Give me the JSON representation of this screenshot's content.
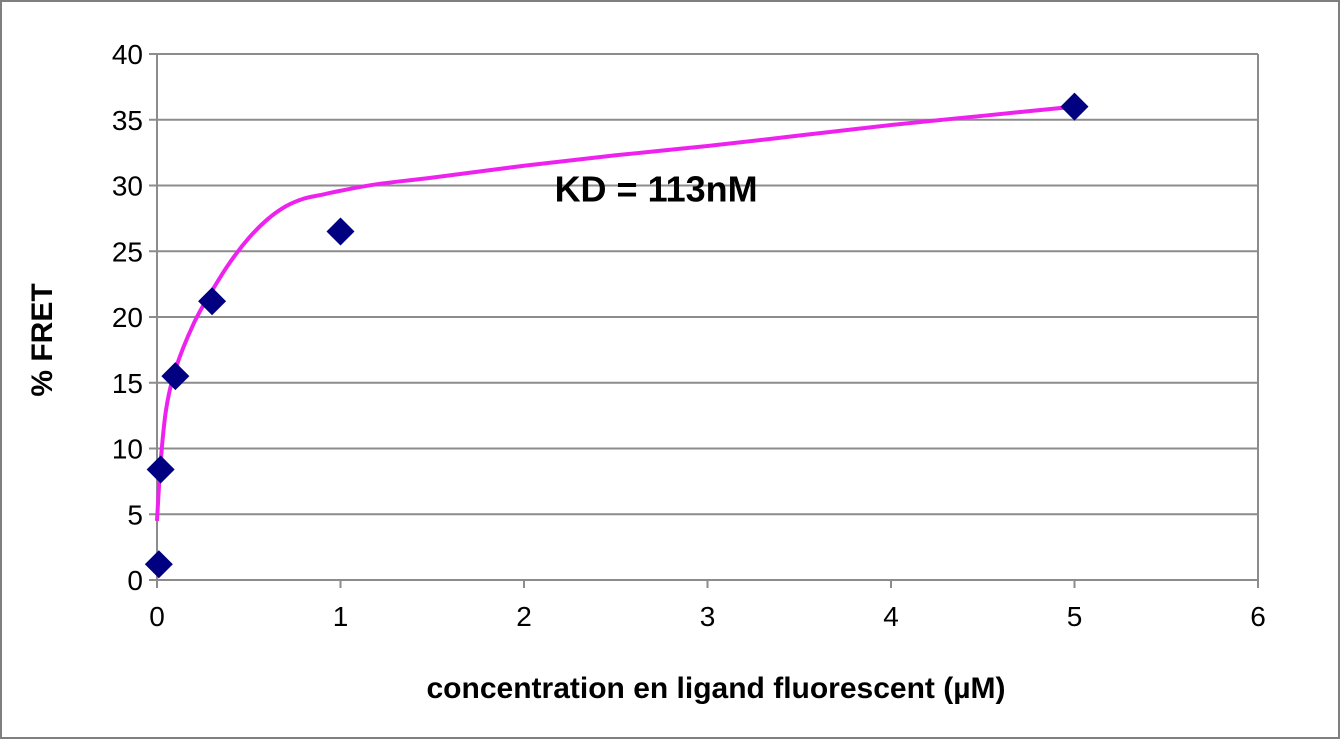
{
  "chart_data": {
    "type": "scatter",
    "title": "",
    "xlabel": "concentration en ligand fluorescent (µM)",
    "ylabel": "% FRET",
    "xlim": [
      0,
      6
    ],
    "ylim": [
      0,
      40
    ],
    "x_ticks": [
      "0",
      "1",
      "2",
      "3",
      "4",
      "5",
      "6"
    ],
    "y_ticks": [
      "0",
      "5",
      "10",
      "15",
      "20",
      "25",
      "30",
      "35",
      "40"
    ],
    "grid": "horizontal",
    "legend": "none",
    "series": [
      {
        "kind": "points",
        "marker": "diamond",
        "color": "#000080",
        "x": [
          0.01,
          0.02,
          0.1,
          0.3,
          1.0,
          5.0
        ],
        "y": [
          1.2,
          8.4,
          15.5,
          21.2,
          26.5,
          36.0
        ]
      },
      {
        "kind": "fit-line",
        "color": "#ee22ee",
        "x": [
          0.0,
          0.02,
          0.05,
          0.1,
          0.2,
          0.3,
          0.4,
          0.5,
          0.6,
          0.7,
          0.8,
          0.9,
          1.0,
          1.2,
          1.5,
          2.0,
          2.5,
          3.0,
          3.5,
          4.0,
          4.5,
          5.0
        ],
        "y": [
          4.5,
          9.0,
          13.0,
          16.0,
          19.5,
          22.0,
          24.2,
          26.0,
          27.4,
          28.4,
          29.0,
          29.3,
          29.6,
          30.1,
          30.6,
          31.5,
          32.3,
          33.0,
          33.8,
          34.6,
          35.3,
          36.0
        ]
      }
    ],
    "annotations": [
      {
        "text": "KD = 113nM",
        "x": 2.72,
        "y": 28.8
      }
    ]
  }
}
